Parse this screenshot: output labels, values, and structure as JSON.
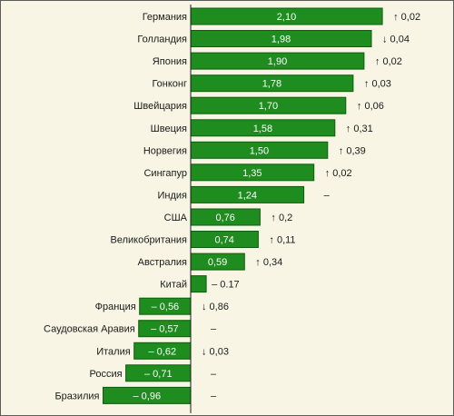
{
  "chart_data": {
    "type": "bar",
    "orientation": "horizontal",
    "title": "",
    "xlabel": "",
    "ylabel": "",
    "xlim": [
      -1.05,
      2.25
    ],
    "grid": false,
    "bar_color": "#1e8c1e",
    "categories": [
      "Германия",
      "Голландия",
      "Япония",
      "Гонконг",
      "Швейцария",
      "Швеция",
      "Норвегия",
      "Сингапур",
      "Индия",
      "США",
      "Великобритания",
      "Австралия",
      "Китай",
      "Франция",
      "Саудовская Аравия",
      "Италия",
      "Россия",
      "Бразилия"
    ],
    "values": [
      2.1,
      1.98,
      1.9,
      1.78,
      1.7,
      1.58,
      1.5,
      1.35,
      1.24,
      0.76,
      0.74,
      0.59,
      0.17,
      -0.56,
      -0.57,
      -0.62,
      -0.71,
      -0.96
    ],
    "value_labels": [
      "2,10",
      "1,98",
      "1,90",
      "1,78",
      "1,70",
      "1,58",
      "1,50",
      "1,35",
      "1,24",
      "0,76",
      "0,74",
      "0,59",
      "",
      "– 0,56",
      "– 0,57",
      "– 0,62",
      "– 0,71",
      "– 0,96"
    ],
    "outside_labels": [
      "",
      "",
      "",
      "",
      "",
      "",
      "",
      "",
      "",
      "",
      "",
      "",
      "– 0.17",
      "",
      "",
      "",
      "",
      ""
    ],
    "changes": [
      "↑ 0,02",
      "↓ 0,04",
      "↑ 0,02",
      "↑ 0,03",
      "↑ 0,06",
      "↑ 0,31",
      "↑ 0,39",
      "↑ 0,02",
      "–",
      "↑ 0,2",
      "↑ 0,11",
      "↑ 0,34",
      "",
      "↓ 0,86",
      "–",
      "↓ 0,03",
      "–",
      "–"
    ]
  }
}
